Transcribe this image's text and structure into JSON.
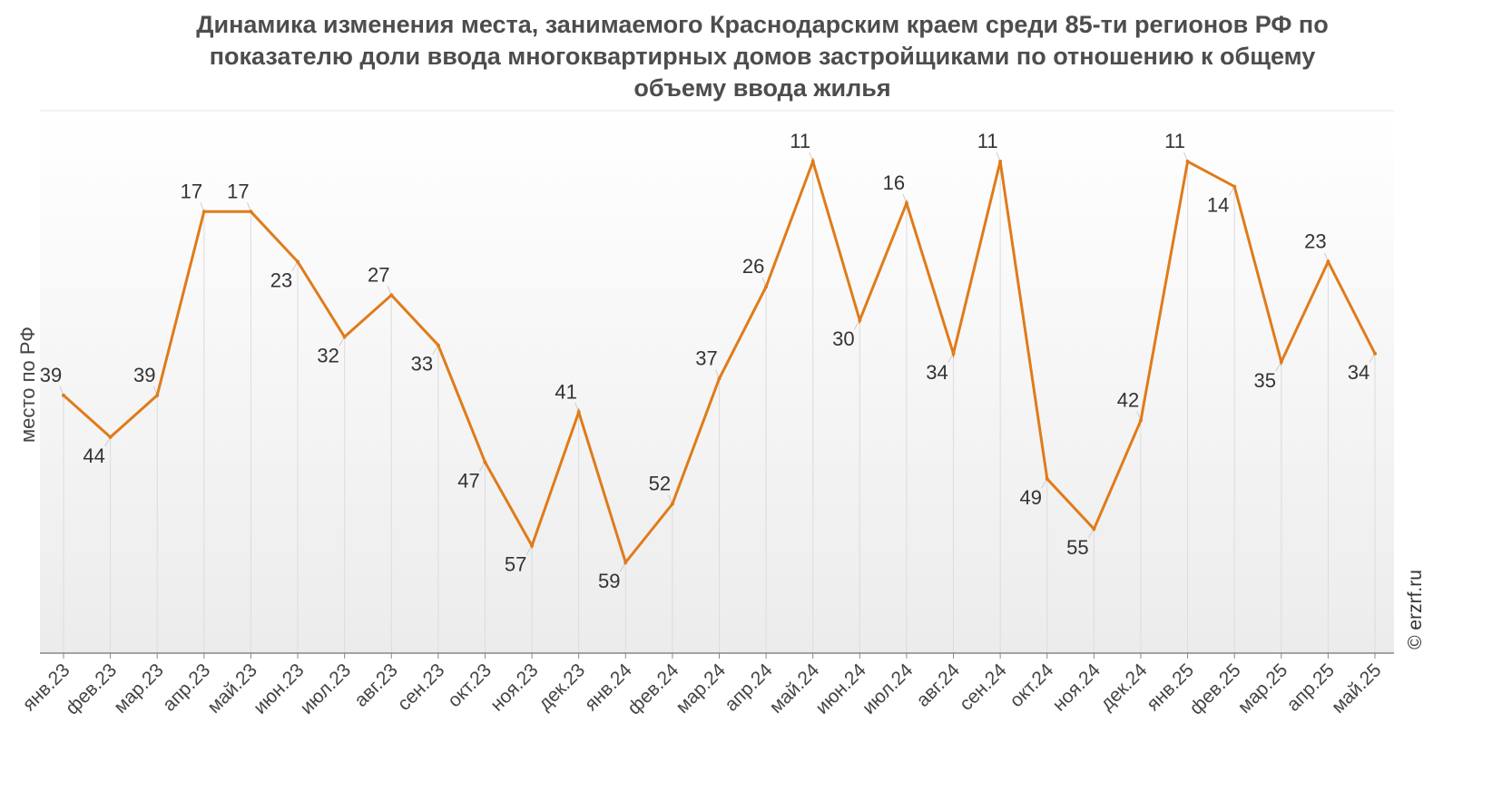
{
  "title_lines": [
    "Динамика изменения места, занимаемого Краснодарским краем среди 85-ти регионов РФ по",
    "показателю доли ввода многоквартирных домов застройщиками по отношению к общему",
    "объему ввода жилья"
  ],
  "credit": "© erzrf.ru",
  "colors": {
    "line": "#e07b1a",
    "grid": "#dcdcdc",
    "axis": "#888888"
  },
  "chart_data": {
    "type": "line",
    "title": "Динамика изменения места, занимаемого Краснодарским краем среди 85-ти регионов РФ по показателю доли ввода многоквартирных домов застройщиками по отношению к общему объему ввода жилья",
    "xlabel": "",
    "ylabel": "место по РФ",
    "y_reversed": true,
    "ylim": [
      1,
      66
    ],
    "grid": "vertical",
    "categories": [
      "янв.23",
      "фев.23",
      "мар.23",
      "апр.23",
      "май.23",
      "июн.23",
      "июл.23",
      "авг.23",
      "сен.23",
      "окт.23",
      "ноя.23",
      "дек.23",
      "янв.24",
      "фев.24",
      "мар.24",
      "апр.24",
      "май.24",
      "июн.24",
      "июл.24",
      "авг.24",
      "сен.24",
      "окт.24",
      "ноя.24",
      "дек.24",
      "янв.25",
      "фев.25",
      "мар.25",
      "апр.25",
      "май.25"
    ],
    "series": [
      {
        "values": [
          39,
          44,
          39,
          17,
          17,
          23,
          32,
          27,
          33,
          47,
          57,
          41,
          59,
          52,
          37,
          26,
          11,
          30,
          16,
          34,
          11,
          49,
          55,
          42,
          11,
          14,
          35,
          23,
          34
        ]
      }
    ]
  }
}
